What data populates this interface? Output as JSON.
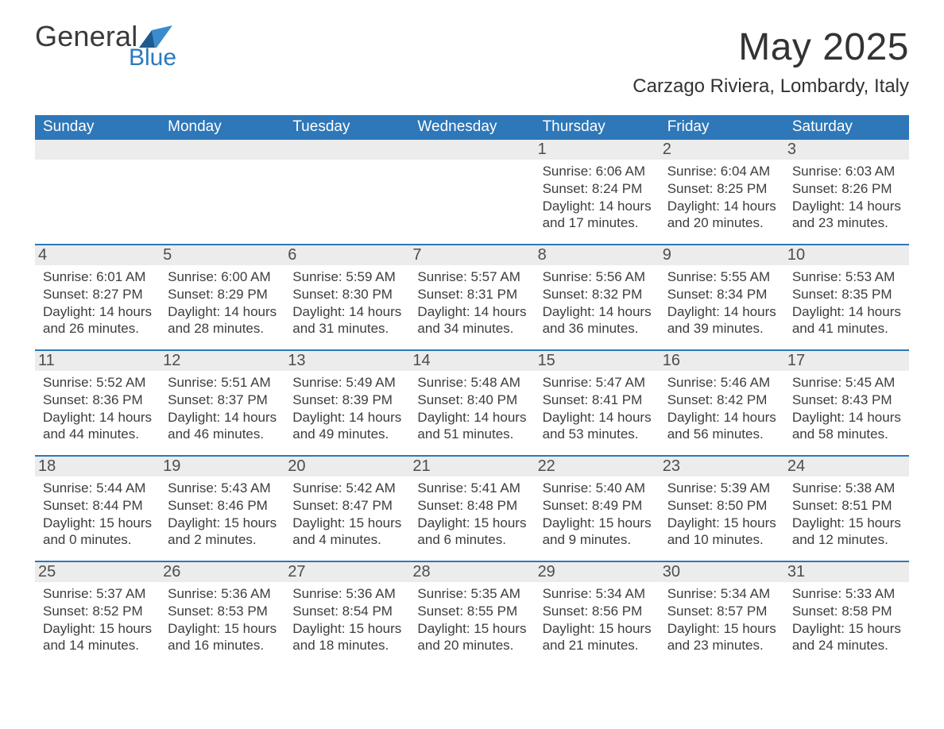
{
  "logo": {
    "word1": "General",
    "word2": "Blue",
    "text_grey": "#3a3a3a",
    "text_blue": "#2a7abf",
    "swoosh_colors": [
      "#1f5a8f",
      "#3a8ccf"
    ]
  },
  "title": {
    "month_year": "May 2025",
    "location": "Carzago Riviera, Lombardy, Italy",
    "font_title_pt": 48,
    "font_location_pt": 24,
    "color": "#333333"
  },
  "calendar": {
    "type": "table",
    "header_bg": "#2e77b8",
    "header_fg": "#ffffff",
    "header_fontsize": 19,
    "separator_color": "#2e77b8",
    "daynum_bg": "#ececec",
    "daynum_color": "#4d4d4d",
    "daynum_fontsize": 20,
    "body_color": "#3d3d3d",
    "body_fontsize": 17,
    "weekdays": [
      "Sunday",
      "Monday",
      "Tuesday",
      "Wednesday",
      "Thursday",
      "Friday",
      "Saturday"
    ],
    "first_weekday_index_of_month": 4,
    "num_days": 31,
    "labels": {
      "sunrise_prefix": "Sunrise: ",
      "sunset_prefix": "Sunset: ",
      "daylight_prefix": "Daylight: "
    },
    "days": {
      "1": {
        "sunrise": "6:06 AM",
        "sunset": "8:24 PM",
        "daylight": "14 hours and 17 minutes."
      },
      "2": {
        "sunrise": "6:04 AM",
        "sunset": "8:25 PM",
        "daylight": "14 hours and 20 minutes."
      },
      "3": {
        "sunrise": "6:03 AM",
        "sunset": "8:26 PM",
        "daylight": "14 hours and 23 minutes."
      },
      "4": {
        "sunrise": "6:01 AM",
        "sunset": "8:27 PM",
        "daylight": "14 hours and 26 minutes."
      },
      "5": {
        "sunrise": "6:00 AM",
        "sunset": "8:29 PM",
        "daylight": "14 hours and 28 minutes."
      },
      "6": {
        "sunrise": "5:59 AM",
        "sunset": "8:30 PM",
        "daylight": "14 hours and 31 minutes."
      },
      "7": {
        "sunrise": "5:57 AM",
        "sunset": "8:31 PM",
        "daylight": "14 hours and 34 minutes."
      },
      "8": {
        "sunrise": "5:56 AM",
        "sunset": "8:32 PM",
        "daylight": "14 hours and 36 minutes."
      },
      "9": {
        "sunrise": "5:55 AM",
        "sunset": "8:34 PM",
        "daylight": "14 hours and 39 minutes."
      },
      "10": {
        "sunrise": "5:53 AM",
        "sunset": "8:35 PM",
        "daylight": "14 hours and 41 minutes."
      },
      "11": {
        "sunrise": "5:52 AM",
        "sunset": "8:36 PM",
        "daylight": "14 hours and 44 minutes."
      },
      "12": {
        "sunrise": "5:51 AM",
        "sunset": "8:37 PM",
        "daylight": "14 hours and 46 minutes."
      },
      "13": {
        "sunrise": "5:49 AM",
        "sunset": "8:39 PM",
        "daylight": "14 hours and 49 minutes."
      },
      "14": {
        "sunrise": "5:48 AM",
        "sunset": "8:40 PM",
        "daylight": "14 hours and 51 minutes."
      },
      "15": {
        "sunrise": "5:47 AM",
        "sunset": "8:41 PM",
        "daylight": "14 hours and 53 minutes."
      },
      "16": {
        "sunrise": "5:46 AM",
        "sunset": "8:42 PM",
        "daylight": "14 hours and 56 minutes."
      },
      "17": {
        "sunrise": "5:45 AM",
        "sunset": "8:43 PM",
        "daylight": "14 hours and 58 minutes."
      },
      "18": {
        "sunrise": "5:44 AM",
        "sunset": "8:44 PM",
        "daylight": "15 hours and 0 minutes."
      },
      "19": {
        "sunrise": "5:43 AM",
        "sunset": "8:46 PM",
        "daylight": "15 hours and 2 minutes."
      },
      "20": {
        "sunrise": "5:42 AM",
        "sunset": "8:47 PM",
        "daylight": "15 hours and 4 minutes."
      },
      "21": {
        "sunrise": "5:41 AM",
        "sunset": "8:48 PM",
        "daylight": "15 hours and 6 minutes."
      },
      "22": {
        "sunrise": "5:40 AM",
        "sunset": "8:49 PM",
        "daylight": "15 hours and 9 minutes."
      },
      "23": {
        "sunrise": "5:39 AM",
        "sunset": "8:50 PM",
        "daylight": "15 hours and 10 minutes."
      },
      "24": {
        "sunrise": "5:38 AM",
        "sunset": "8:51 PM",
        "daylight": "15 hours and 12 minutes."
      },
      "25": {
        "sunrise": "5:37 AM",
        "sunset": "8:52 PM",
        "daylight": "15 hours and 14 minutes."
      },
      "26": {
        "sunrise": "5:36 AM",
        "sunset": "8:53 PM",
        "daylight": "15 hours and 16 minutes."
      },
      "27": {
        "sunrise": "5:36 AM",
        "sunset": "8:54 PM",
        "daylight": "15 hours and 18 minutes."
      },
      "28": {
        "sunrise": "5:35 AM",
        "sunset": "8:55 PM",
        "daylight": "15 hours and 20 minutes."
      },
      "29": {
        "sunrise": "5:34 AM",
        "sunset": "8:56 PM",
        "daylight": "15 hours and 21 minutes."
      },
      "30": {
        "sunrise": "5:34 AM",
        "sunset": "8:57 PM",
        "daylight": "15 hours and 23 minutes."
      },
      "31": {
        "sunrise": "5:33 AM",
        "sunset": "8:58 PM",
        "daylight": "15 hours and 24 minutes."
      }
    }
  }
}
